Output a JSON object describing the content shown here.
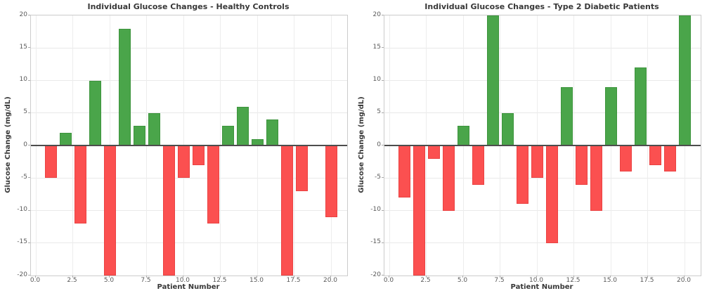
{
  "figure": {
    "background": "#ffffff",
    "positive_color": "#4aa54a",
    "negative_color": "#fb5050",
    "positive_edge_color": "#3d943d",
    "negative_edge_color": "#ea4343",
    "grid_color": "#e9e9e9",
    "spine_color": "#cccccc",
    "zero_line_color": "#4d4d4d",
    "tick_label_color": "#5a5a5a",
    "text_color": "#383838"
  },
  "chart_data": [
    {
      "type": "bar",
      "title": "Individual Glucose Changes - Healthy Controls",
      "xlabel": "Patient Number",
      "ylabel": "Glucose Change (mg/dL)",
      "x": [
        1,
        2,
        3,
        4,
        5,
        6,
        7,
        8,
        9,
        10,
        11,
        12,
        13,
        14,
        15,
        16,
        17,
        18,
        19,
        20
      ],
      "values": [
        -5,
        2,
        -12,
        10,
        -20,
        18,
        3,
        5,
        -20,
        -5,
        -3,
        -12,
        3,
        6,
        1,
        4,
        -20,
        -7,
        0,
        -11
      ],
      "bar_width": 0.8,
      "ylim": [
        -20,
        20
      ],
      "xlim": [
        -0.4,
        21.1
      ],
      "yticks": [
        20,
        15,
        10,
        5,
        0,
        -5,
        -10,
        -15,
        -20
      ],
      "ytick_labels": [
        "20",
        "15",
        "10",
        "5",
        "0",
        "-5",
        "-10",
        "-15",
        "-20"
      ],
      "xticks": [
        0,
        2.5,
        5,
        7.5,
        10,
        12.5,
        15,
        17.5,
        20
      ],
      "xtick_labels": [
        "0.0",
        "2.5",
        "5.0",
        "7.5",
        "10.0",
        "12.5",
        "15.0",
        "17.5",
        "20.0"
      ],
      "grid": true,
      "legend": false,
      "zero_line": true,
      "color_rule": "green if positive, red if negative"
    },
    {
      "type": "bar",
      "title": "Individual Glucose Changes - Type 2 Diabetic Patients",
      "xlabel": "Patient Number",
      "ylabel": "Glucose Change (mg/dL)",
      "x": [
        1,
        2,
        3,
        4,
        5,
        6,
        7,
        8,
        9,
        10,
        11,
        12,
        13,
        14,
        15,
        16,
        17,
        18,
        19,
        20
      ],
      "values": [
        -8,
        -20,
        -2,
        -10,
        3,
        -6,
        20,
        5,
        -9,
        -5,
        -15,
        9,
        -6,
        -10,
        9,
        -4,
        12,
        -3,
        -4,
        20
      ],
      "bar_width": 0.8,
      "ylim": [
        -20,
        20
      ],
      "xlim": [
        -0.4,
        21.1
      ],
      "yticks": [
        20,
        15,
        10,
        5,
        0,
        -5,
        -10,
        -15,
        -20
      ],
      "ytick_labels": [
        "20",
        "15",
        "10",
        "5",
        "0",
        "-5",
        "-10",
        "-15",
        "-20"
      ],
      "xticks": [
        0,
        2.5,
        5,
        7.5,
        10,
        12.5,
        15,
        17.5,
        20
      ],
      "xtick_labels": [
        "0.0",
        "2.5",
        "5.0",
        "7.5",
        "10.0",
        "12.5",
        "15.0",
        "17.5",
        "20.0"
      ],
      "grid": true,
      "legend": false,
      "zero_line": true,
      "color_rule": "green if positive, red if negative"
    }
  ]
}
